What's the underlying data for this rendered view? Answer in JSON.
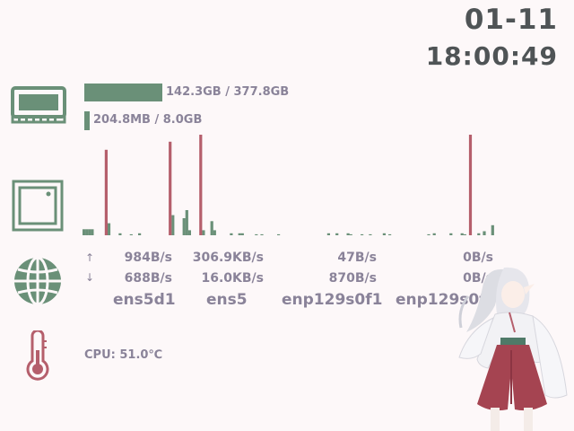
{
  "clock": {
    "date": "01-11",
    "time": "18:00:49"
  },
  "memory": {
    "ram_label": "142.3GB / 377.8GB",
    "ram_fraction": 0.377,
    "swap_label": "204.8MB / 8.0GB",
    "swap_fraction": 0.025
  },
  "io_chart": {
    "type": "bar",
    "values_read": [
      2,
      2,
      1,
      0,
      1,
      1,
      0,
      1,
      0,
      0,
      0,
      0,
      0,
      0,
      0,
      0,
      0,
      0,
      0,
      0,
      0,
      0,
      0,
      0,
      0,
      0,
      0,
      0,
      0,
      0,
      0,
      0,
      0,
      0,
      0,
      0,
      0,
      0,
      0,
      0,
      0,
      0,
      0,
      0,
      0,
      0,
      0,
      0,
      0,
      0,
      0,
      0,
      0,
      0,
      0,
      0,
      0,
      0,
      0,
      0,
      0,
      0,
      0,
      0,
      0,
      0,
      0,
      0,
      0,
      0,
      0,
      0,
      0,
      0,
      0,
      0,
      0,
      0,
      0,
      0,
      0,
      0,
      0,
      0,
      0,
      0,
      0,
      0,
      0,
      0,
      0,
      0,
      0,
      0,
      0,
      0,
      0,
      0,
      0,
      0,
      0,
      0,
      0,
      0,
      0,
      0,
      0,
      0,
      0,
      0,
      0,
      0,
      0,
      0,
      0,
      0,
      0,
      0
    ],
    "write_bars": [
      {
        "i": 8,
        "h": 85
      },
      {
        "i": 31,
        "h": 93
      },
      {
        "i": 42,
        "h": 100
      },
      {
        "i": 139,
        "h": 100
      }
    ],
    "read_bars": [
      {
        "i": 0,
        "h": 6
      },
      {
        "i": 1,
        "h": 6
      },
      {
        "i": 2,
        "h": 6
      },
      {
        "i": 3,
        "h": 6
      },
      {
        "i": 9,
        "h": 12
      },
      {
        "i": 13,
        "h": 2
      },
      {
        "i": 17,
        "h": 1
      },
      {
        "i": 20,
        "h": 2
      },
      {
        "i": 32,
        "h": 20
      },
      {
        "i": 36,
        "h": 17
      },
      {
        "i": 37,
        "h": 25
      },
      {
        "i": 38,
        "h": 5
      },
      {
        "i": 43,
        "h": 5
      },
      {
        "i": 46,
        "h": 14
      },
      {
        "i": 47,
        "h": 5
      },
      {
        "i": 53,
        "h": 2
      },
      {
        "i": 56,
        "h": 2
      },
      {
        "i": 57,
        "h": 2
      },
      {
        "i": 62,
        "h": 1
      },
      {
        "i": 64,
        "h": 1
      },
      {
        "i": 70,
        "h": 1
      },
      {
        "i": 88,
        "h": 2
      },
      {
        "i": 91,
        "h": 2
      },
      {
        "i": 95,
        "h": 2
      },
      {
        "i": 96,
        "h": 1
      },
      {
        "i": 100,
        "h": 1
      },
      {
        "i": 103,
        "h": 1
      },
      {
        "i": 108,
        "h": 2
      },
      {
        "i": 110,
        "h": 1
      },
      {
        "i": 124,
        "h": 1
      },
      {
        "i": 126,
        "h": 2
      },
      {
        "i": 132,
        "h": 2
      },
      {
        "i": 136,
        "h": 2
      },
      {
        "i": 137,
        "h": 1
      },
      {
        "i": 142,
        "h": 2
      },
      {
        "i": 144,
        "h": 4
      },
      {
        "i": 147,
        "h": 10
      }
    ]
  },
  "network": {
    "interfaces": [
      {
        "name": "ens5d1",
        "up": "984B/s",
        "down": "688B/s"
      },
      {
        "name": "ens5",
        "up": "306.9KB/s",
        "down": "16.0KB/s"
      },
      {
        "name": "enp129s0f1",
        "up": "47B/s",
        "down": "870B/s"
      },
      {
        "name": "enp129s0f0",
        "up": "0B/s",
        "down": "0B/s"
      }
    ],
    "up_glyph": "↑",
    "down_glyph": "↓"
  },
  "cpu": {
    "label": "CPU: 51.0℃"
  },
  "colors": {
    "green": "#6a9078",
    "red": "#b55f6c",
    "text": "#8a8399",
    "clock": "#4f5456",
    "bg": "#fdf8f9"
  }
}
